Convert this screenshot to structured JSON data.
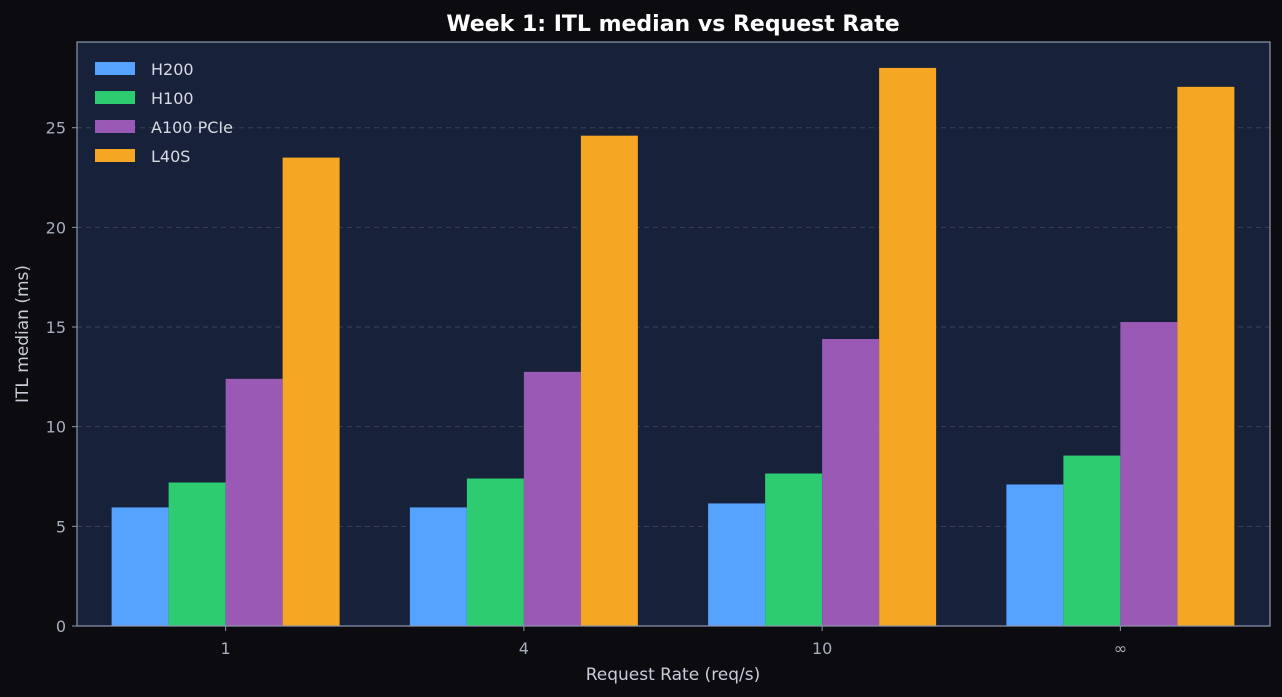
{
  "chart_data": {
    "type": "bar",
    "title": "Week 1: ITL median vs Request Rate",
    "xlabel": "Request Rate (req/s)",
    "ylabel": "ITL median (ms)",
    "categories": [
      "1",
      "4",
      "10",
      "∞"
    ],
    "ylim": [
      0,
      29.3
    ],
    "yticks": [
      0,
      5,
      10,
      15,
      20,
      25
    ],
    "grid": true,
    "legend_position": "top-left",
    "series": [
      {
        "name": "H200",
        "color": "#56a2ff",
        "values": [
          5.95,
          5.95,
          6.15,
          7.1
        ]
      },
      {
        "name": "H100",
        "color": "#2ecc71",
        "values": [
          7.2,
          7.4,
          7.65,
          8.55
        ]
      },
      {
        "name": "A100 PCIe",
        "color": "#9b59b6",
        "values": [
          12.4,
          12.75,
          14.4,
          15.25
        ]
      },
      {
        "name": "L40S",
        "color": "#f5a623",
        "values": [
          23.5,
          24.6,
          28.0,
          27.05
        ]
      }
    ],
    "colors": {
      "background": "#0c0b10",
      "plot_area": "#172139",
      "frame": "#8e97ad",
      "grid": "#3a4257"
    }
  }
}
